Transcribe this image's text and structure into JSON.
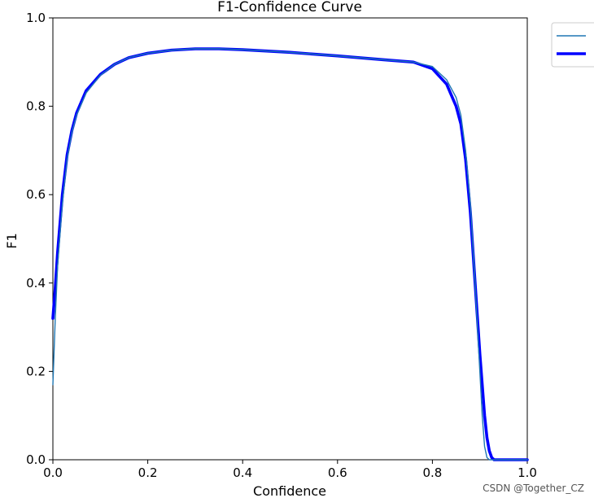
{
  "chart_data": {
    "type": "line",
    "title": "F1-Confidence Curve",
    "xlabel": "Confidence",
    "ylabel": "F1",
    "xlim": [
      0,
      1
    ],
    "ylim": [
      0,
      1
    ],
    "x_ticks": [
      "0.0",
      "0.2",
      "0.4",
      "0.6",
      "0.8",
      "1.0"
    ],
    "y_ticks": [
      "0.0",
      "0.2",
      "0.4",
      "0.6",
      "0.8",
      "1.0"
    ],
    "grid": false,
    "legend": {
      "placement": "upper-right-outside",
      "entries": [
        {
          "color": "#1f77b4",
          "style": "thin"
        },
        {
          "color": "#0000ff",
          "style": "thick"
        }
      ]
    },
    "series": [
      {
        "color": "#1f77b4",
        "line_weight": "thin",
        "x": [
          0.0,
          0.005,
          0.01,
          0.02,
          0.03,
          0.04,
          0.05,
          0.07,
          0.1,
          0.13,
          0.16,
          0.2,
          0.25,
          0.3,
          0.35,
          0.4,
          0.5,
          0.6,
          0.7,
          0.76,
          0.8,
          0.83,
          0.85,
          0.86,
          0.87,
          0.88,
          0.89,
          0.9,
          0.905,
          0.91,
          0.915,
          0.92,
          0.93,
          1.0
        ],
        "y": [
          0.17,
          0.32,
          0.44,
          0.58,
          0.68,
          0.74,
          0.78,
          0.83,
          0.87,
          0.895,
          0.91,
          0.92,
          0.927,
          0.93,
          0.93,
          0.928,
          0.922,
          0.914,
          0.905,
          0.9,
          0.89,
          0.86,
          0.82,
          0.78,
          0.7,
          0.58,
          0.4,
          0.2,
          0.1,
          0.03,
          0.005,
          0.0,
          0.0,
          0.0
        ]
      },
      {
        "color": "#0000ff",
        "line_weight": "thick",
        "x": [
          0.0,
          0.005,
          0.01,
          0.02,
          0.03,
          0.04,
          0.05,
          0.07,
          0.1,
          0.13,
          0.16,
          0.2,
          0.25,
          0.3,
          0.35,
          0.4,
          0.5,
          0.6,
          0.7,
          0.76,
          0.8,
          0.83,
          0.85,
          0.86,
          0.87,
          0.88,
          0.89,
          0.9,
          0.91,
          0.915,
          0.92,
          0.925,
          0.93,
          1.0
        ],
        "y": [
          0.32,
          0.39,
          0.47,
          0.6,
          0.69,
          0.745,
          0.785,
          0.835,
          0.872,
          0.895,
          0.91,
          0.92,
          0.927,
          0.93,
          0.93,
          0.928,
          0.922,
          0.914,
          0.905,
          0.9,
          0.885,
          0.85,
          0.8,
          0.76,
          0.68,
          0.56,
          0.4,
          0.24,
          0.1,
          0.05,
          0.02,
          0.005,
          0.0,
          0.0
        ]
      }
    ]
  },
  "watermark": "CSDN @Together_CZ"
}
